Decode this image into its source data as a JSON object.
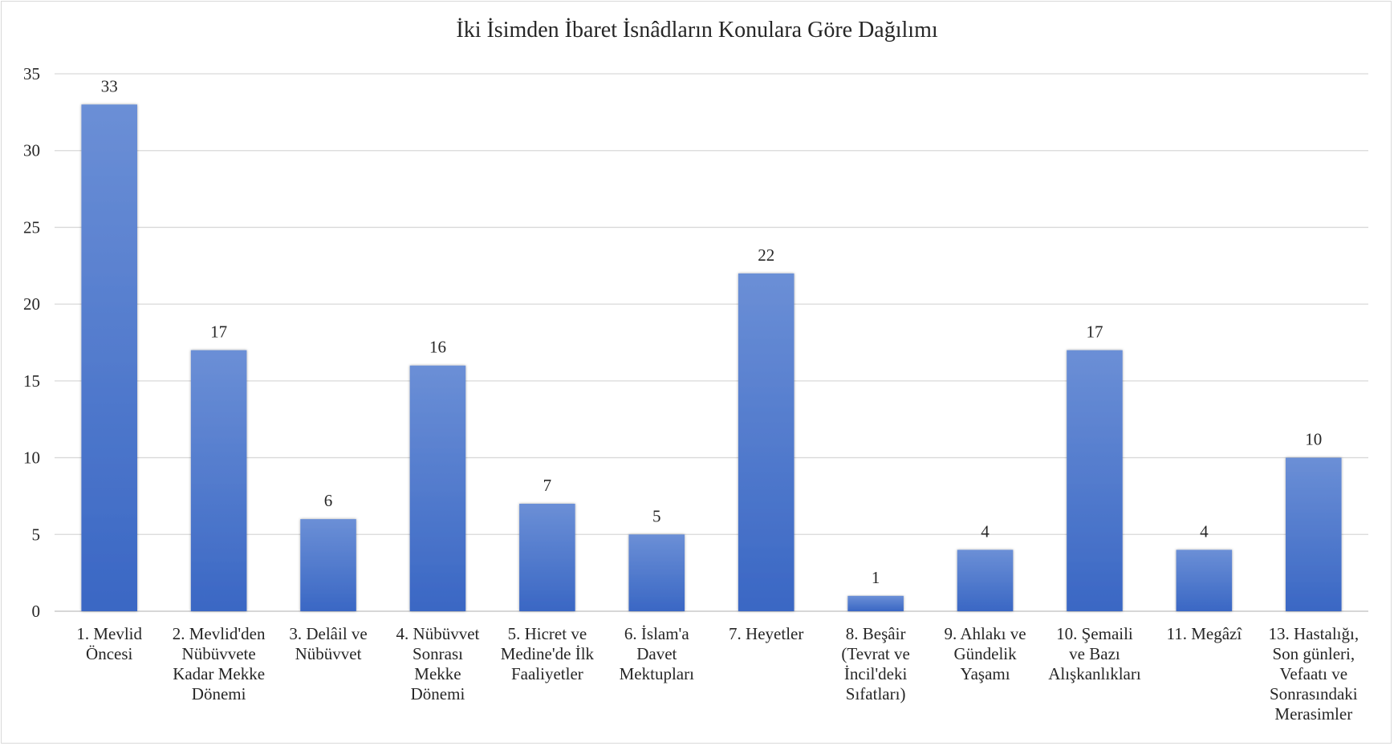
{
  "chart_data": {
    "type": "bar",
    "title": "İki İsimden İbaret İsnâdların Konulara Göre Dağılımı",
    "xlabel": "",
    "ylabel": "",
    "ylim": [
      0,
      35
    ],
    "yticks": [
      0,
      5,
      10,
      15,
      20,
      25,
      30,
      35
    ],
    "grid": true,
    "legend": "none",
    "bar_color_top": "#6b8fd6",
    "bar_color_bottom": "#3a67c4",
    "categories": [
      [
        "1. Mevlid",
        "Öncesi"
      ],
      [
        "2. Mevlid'den",
        "Nübüvvete",
        "Kadar Mekke",
        "Dönemi"
      ],
      [
        "3. Delâil ve",
        "Nübüvvet"
      ],
      [
        "4. Nübüvvet",
        "Sonrası",
        "Mekke",
        "Dönemi"
      ],
      [
        "5. Hicret ve",
        "Medine'de İlk",
        "Faaliyetler"
      ],
      [
        "6. İslam'a",
        "Davet",
        "Mektupları"
      ],
      [
        "7. Heyetler"
      ],
      [
        "8. Beşâir",
        "(Tevrat ve",
        "İncil'deki",
        "Sıfatları)"
      ],
      [
        "9. Ahlakı ve",
        "Gündelik",
        "Yaşamı"
      ],
      [
        "10. Şemaili",
        "ve Bazı",
        "Alışkanlıkları"
      ],
      [
        "11. Megâzî"
      ],
      [
        "13. Hastalığı,",
        "Son günleri,",
        "Vefaatı ve",
        "Sonrasındaki",
        "Merasimler"
      ]
    ],
    "values": [
      33,
      17,
      6,
      16,
      7,
      5,
      22,
      1,
      4,
      17,
      4,
      10
    ]
  }
}
